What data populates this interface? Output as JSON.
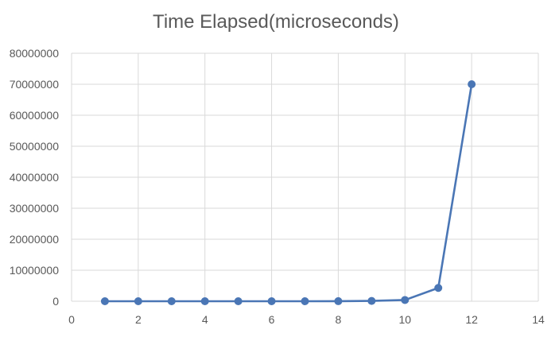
{
  "chart_data": {
    "type": "scatter",
    "title": "Time Elapsed(microseconds)",
    "xlabel": "",
    "ylabel": "",
    "xlim": [
      0,
      14
    ],
    "ylim": [
      0,
      80000000
    ],
    "x_ticks": [
      0,
      2,
      4,
      6,
      8,
      10,
      12,
      14
    ],
    "y_ticks": [
      0,
      10000000,
      20000000,
      30000000,
      40000000,
      50000000,
      60000000,
      70000000,
      80000000
    ],
    "x_tick_labels": [
      "0",
      "2",
      "4",
      "6",
      "8",
      "10",
      "12",
      "14"
    ],
    "y_tick_labels": [
      "0",
      "10000000",
      "20000000",
      "30000000",
      "40000000",
      "50000000",
      "60000000",
      "70000000",
      "80000000"
    ],
    "grid": true,
    "legend": "none",
    "series": [
      {
        "color": "#4a76b5",
        "x": [
          1,
          2,
          3,
          4,
          5,
          6,
          7,
          8,
          9,
          10,
          11,
          12
        ],
        "y": [
          1,
          2,
          5,
          20,
          90,
          500,
          3000,
          20000,
          100000,
          400000,
          4300000,
          70000000
        ]
      }
    ]
  }
}
